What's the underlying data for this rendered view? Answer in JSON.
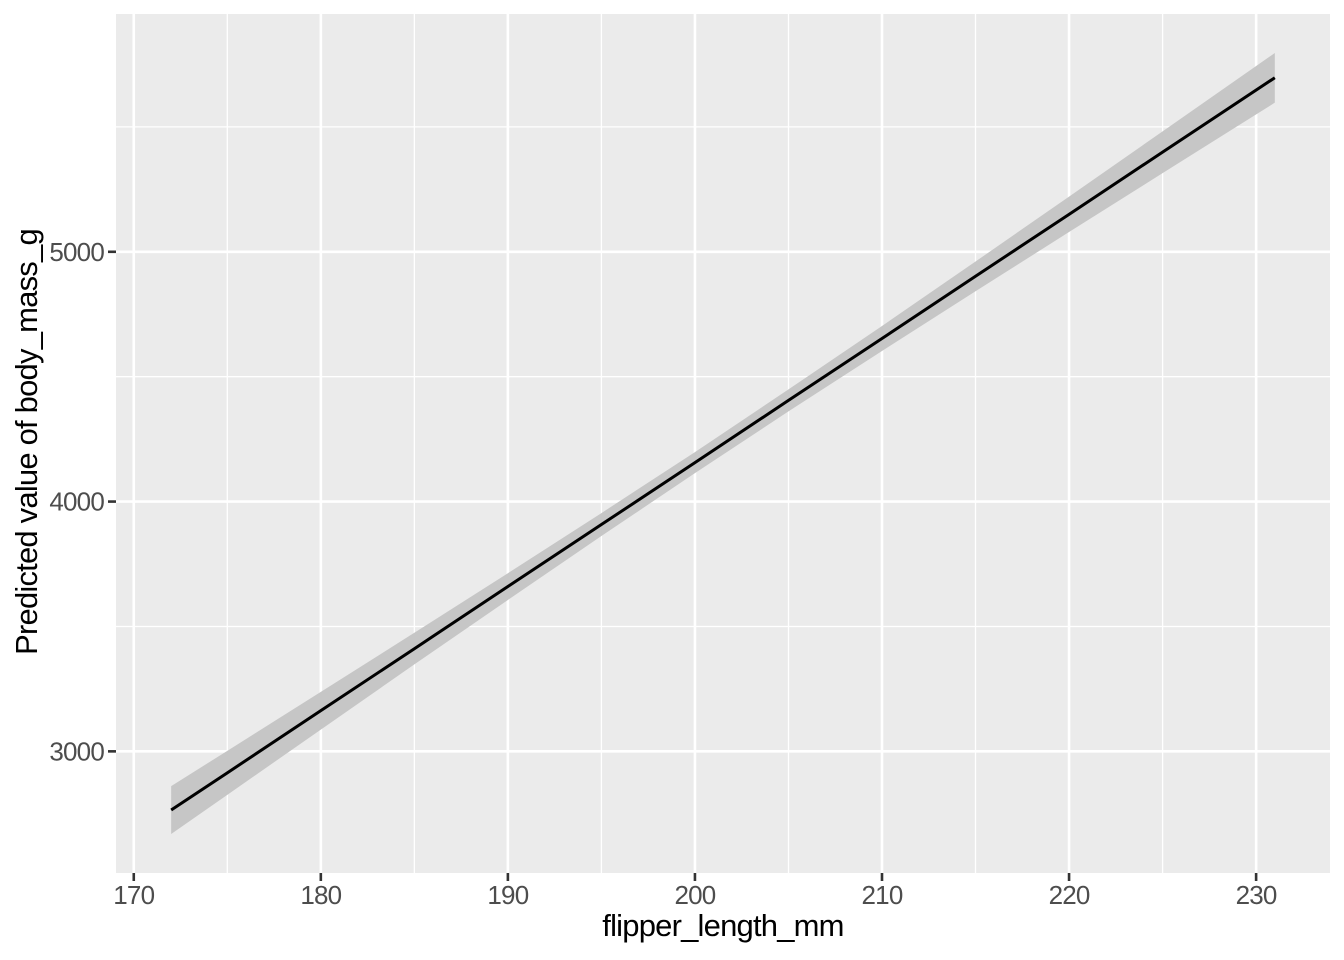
{
  "chart_data": {
    "type": "line",
    "title": "",
    "xlabel": "flipper_length_mm",
    "ylabel": "Predicted value of body_mass_g",
    "xlim": [
      169.05,
      233.95
    ],
    "ylim": [
      2513,
      5952
    ],
    "x_ticks": [
      170,
      180,
      190,
      200,
      210,
      220,
      230
    ],
    "y_ticks": [
      3000,
      4000,
      5000
    ],
    "x_minor_gridlines": [
      175,
      185,
      195,
      205,
      215,
      225
    ],
    "y_minor_gridlines": [
      3500,
      4500,
      5500
    ],
    "grid": true,
    "legend": "none",
    "series": [
      {
        "name": "Predicted value",
        "x": [
          172,
          175,
          180,
          185,
          190,
          195,
          200,
          205,
          210,
          215,
          220,
          225,
          231
        ],
        "y": [
          2765,
          2914,
          3163,
          3411,
          3660,
          3908,
          4156,
          4405,
          4653,
          4902,
          5150,
          5399,
          5697
        ],
        "conf_low": [
          2669,
          2826,
          3087,
          3348,
          3606,
          3862,
          4114,
          4361,
          4603,
          4842,
          5079,
          5315,
          5597
        ],
        "conf_high": [
          2861,
          3002,
          3238,
          3475,
          3713,
          3954,
          4198,
          4449,
          4703,
          4961,
          5221,
          5482,
          5796
        ]
      }
    ],
    "colors": {
      "background": "#FFFFFF",
      "panel_bg": "#EBEBEB",
      "grid_major": "#FFFFFF",
      "grid_minor": "#FFFFFF",
      "ribbon": "#C6C6C6",
      "line": "#000000",
      "tick": "#333333",
      "tick_label": "#4D4D4D",
      "axis_title": "#000000"
    }
  }
}
